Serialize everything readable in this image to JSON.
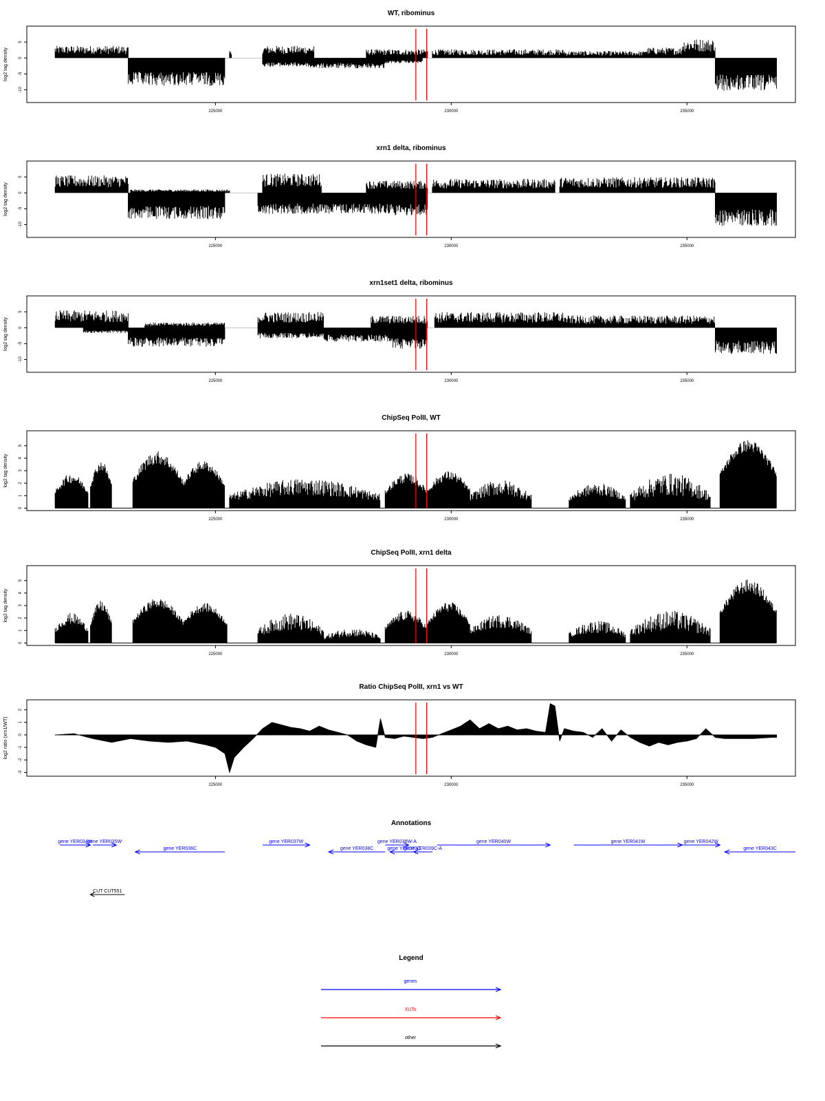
{
  "chart_data": [
    {
      "type": "area",
      "title": "WT, ribominus",
      "xlabel": "",
      "ylabel": "log2 tag density",
      "x_ticks": [
        225000,
        230000,
        235000
      ],
      "y_ticks": [
        5,
        0,
        -5,
        -10
      ],
      "xlim": [
        221000,
        237300
      ],
      "ylim": [
        -14,
        10
      ],
      "markers_x": [
        229250,
        229480
      ],
      "plus_strand_regions": [
        {
          "start": 221600,
          "end": 223150,
          "height": 3.5
        },
        {
          "start": 225300,
          "end": 225350,
          "height": 2
        },
        {
          "start": 226000,
          "end": 227100,
          "height": 3.5
        },
        {
          "start": 228200,
          "end": 229500,
          "height": 2.5
        },
        {
          "start": 229600,
          "end": 232400,
          "height": 2.5
        },
        {
          "start": 232400,
          "end": 234100,
          "height": 2.0
        },
        {
          "start": 234100,
          "end": 234900,
          "height": 3.0
        },
        {
          "start": 234900,
          "end": 235600,
          "height": 5.5
        }
      ],
      "minus_strand_regions": [
        {
          "start": 223150,
          "end": 225200,
          "depth": -8.0
        },
        {
          "start": 226000,
          "end": 227000,
          "depth": -2.5
        },
        {
          "start": 227000,
          "end": 228600,
          "depth": -3.0
        },
        {
          "start": 228600,
          "end": 229400,
          "depth": -1.5
        },
        {
          "start": 235600,
          "end": 236900,
          "depth": -9.5
        }
      ]
    },
    {
      "type": "area",
      "title": "xrn1 delta, ribominus",
      "xlabel": "",
      "ylabel": "log2 tag density",
      "x_ticks": [
        225000,
        230000,
        235000
      ],
      "y_ticks": [
        5,
        0,
        -5,
        -10
      ],
      "xlim": [
        221000,
        237300
      ],
      "ylim": [
        -14,
        10
      ],
      "markers_x": [
        229250,
        229480
      ],
      "plus_strand_regions": [
        {
          "start": 221600,
          "end": 223150,
          "height": 5.0
        },
        {
          "start": 223200,
          "end": 225300,
          "height": 1.0
        },
        {
          "start": 226000,
          "end": 227250,
          "height": 5.5
        },
        {
          "start": 228200,
          "end": 229500,
          "height": 3.5
        },
        {
          "start": 229600,
          "end": 232200,
          "height": 4.0
        },
        {
          "start": 232300,
          "end": 235600,
          "height": 4.5
        }
      ],
      "minus_strand_regions": [
        {
          "start": 223150,
          "end": 225200,
          "depth": -7.5
        },
        {
          "start": 225900,
          "end": 228800,
          "depth": -6.0
        },
        {
          "start": 228800,
          "end": 229500,
          "depth": -6.5
        },
        {
          "start": 235600,
          "end": 236900,
          "depth": -9.5
        }
      ]
    },
    {
      "type": "area",
      "title": "xrn1set1 delta, ribominus",
      "xlabel": "",
      "ylabel": "log2 tag density",
      "x_ticks": [
        225000,
        230000,
        235000
      ],
      "y_ticks": [
        5,
        0,
        -5,
        -10
      ],
      "xlim": [
        221000,
        237300
      ],
      "ylim": [
        -14,
        10
      ],
      "markers_x": [
        229250,
        229480
      ],
      "plus_strand_regions": [
        {
          "start": 221600,
          "end": 223150,
          "height": 5.0
        },
        {
          "start": 223500,
          "end": 225200,
          "height": 1.5
        },
        {
          "start": 225900,
          "end": 227300,
          "height": 4.5
        },
        {
          "start": 228300,
          "end": 229500,
          "height": 3.5
        },
        {
          "start": 229650,
          "end": 232400,
          "height": 4.5
        },
        {
          "start": 232400,
          "end": 235600,
          "height": 3.5
        }
      ],
      "minus_strand_regions": [
        {
          "start": 222200,
          "end": 223150,
          "depth": -1.5
        },
        {
          "start": 223150,
          "end": 225200,
          "depth": -5.5
        },
        {
          "start": 225900,
          "end": 227300,
          "depth": -3.0
        },
        {
          "start": 227300,
          "end": 228700,
          "depth": -4.0
        },
        {
          "start": 228700,
          "end": 229500,
          "depth": -6.0
        },
        {
          "start": 235600,
          "end": 236900,
          "depth": -7.5
        }
      ]
    },
    {
      "type": "bar",
      "title": "ChipSeq PolII, WT",
      "xlabel": "",
      "ylabel": "log2 tag density",
      "x_ticks": [
        225000,
        230000,
        235000
      ],
      "y_ticks": [
        0,
        1,
        2,
        3,
        4,
        5
      ],
      "xlim": [
        221000,
        237300
      ],
      "ylim": [
        -0.2,
        6.2
      ],
      "markers_x": [
        229250,
        229480
      ],
      "regions": [
        {
          "start": 221600,
          "end": 222300,
          "level": 2.0,
          "peak": 2.8
        },
        {
          "start": 222350,
          "end": 222800,
          "level": 3.0,
          "peak": 3.8
        },
        {
          "start": 223250,
          "end": 224300,
          "level": 3.5,
          "peak": 4.6
        },
        {
          "start": 224300,
          "end": 225200,
          "level": 3.0,
          "peak": 3.8
        },
        {
          "start": 225300,
          "end": 228500,
          "level": 1.0,
          "peak": 2.4
        },
        {
          "start": 228600,
          "end": 229500,
          "level": 2.0,
          "peak": 2.8
        },
        {
          "start": 229500,
          "end": 230400,
          "level": 2.2,
          "peak": 3.0
        },
        {
          "start": 230400,
          "end": 231700,
          "level": 1.0,
          "peak": 2.3
        },
        {
          "start": 232500,
          "end": 233700,
          "level": 1.0,
          "peak": 2.0
        },
        {
          "start": 233800,
          "end": 235500,
          "level": 1.0,
          "peak": 2.8
        },
        {
          "start": 235700,
          "end": 236900,
          "level": 4.5,
          "peak": 5.5
        }
      ]
    },
    {
      "type": "bar",
      "title": "ChipSeq PolII, xrn1 delta",
      "xlabel": "",
      "ylabel": "log2 tag density",
      "x_ticks": [
        225000,
        230000,
        235000
      ],
      "y_ticks": [
        0,
        1,
        2,
        3,
        4,
        5
      ],
      "xlim": [
        221000,
        237300
      ],
      "ylim": [
        -0.2,
        6.2
      ],
      "markers_x": [
        229250,
        229480
      ],
      "regions": [
        {
          "start": 221600,
          "end": 222300,
          "level": 1.5,
          "peak": 2.4
        },
        {
          "start": 222350,
          "end": 222800,
          "level": 2.5,
          "peak": 3.4
        },
        {
          "start": 223250,
          "end": 224300,
          "level": 2.8,
          "peak": 3.6
        },
        {
          "start": 224300,
          "end": 225250,
          "level": 2.5,
          "peak": 3.2
        },
        {
          "start": 225900,
          "end": 227300,
          "level": 1.0,
          "peak": 2.4
        },
        {
          "start": 227300,
          "end": 228500,
          "level": 0.5,
          "peak": 1.2
        },
        {
          "start": 228600,
          "end": 229500,
          "level": 1.8,
          "peak": 2.6
        },
        {
          "start": 229500,
          "end": 230400,
          "level": 2.5,
          "peak": 3.3
        },
        {
          "start": 230400,
          "end": 231700,
          "level": 1.2,
          "peak": 2.3
        },
        {
          "start": 232500,
          "end": 233700,
          "level": 0.8,
          "peak": 1.8
        },
        {
          "start": 233800,
          "end": 235500,
          "level": 1.0,
          "peak": 2.6
        },
        {
          "start": 235700,
          "end": 236900,
          "level": 4.0,
          "peak": 5.1
        }
      ]
    },
    {
      "type": "area",
      "title": "Ratio ChipSeq PolII, xrn1 vs WT",
      "xlabel": "",
      "ylabel": "log2 ratio (xrn1/WT)",
      "x_ticks": [
        225000,
        230000,
        235000
      ],
      "y_ticks": [
        2,
        1,
        0,
        -1,
        -2,
        -3
      ],
      "xlim": [
        221000,
        237300
      ],
      "ylim": [
        -3.3,
        2.8
      ],
      "markers_x": [
        229250,
        229480
      ],
      "x": [
        221600,
        222000,
        222400,
        222800,
        223200,
        223600,
        224000,
        224400,
        224800,
        225000,
        225200,
        225300,
        225400,
        225600,
        225800,
        226000,
        226200,
        226400,
        226600,
        226800,
        227000,
        227200,
        227400,
        227600,
        227800,
        228000,
        228200,
        228400,
        228500,
        228600,
        228800,
        229000,
        229200,
        229400,
        229600,
        229800,
        230000,
        230200,
        230400,
        230600,
        230800,
        231000,
        231200,
        231400,
        231600,
        231800,
        232000,
        232100,
        232200,
        232300,
        232400,
        232600,
        232800,
        233000,
        233200,
        233400,
        233600,
        233800,
        234000,
        234200,
        234400,
        234600,
        234800,
        235000,
        235200,
        235400,
        235600,
        235800,
        236000,
        236400,
        236800,
        236900
      ],
      "values": [
        0.0,
        0.1,
        -0.3,
        -0.6,
        -0.3,
        -0.5,
        -0.6,
        -0.5,
        -0.8,
        -1.0,
        -1.5,
        -3.0,
        -1.8,
        -1.0,
        -0.3,
        0.5,
        1.0,
        0.8,
        0.6,
        0.5,
        0.3,
        0.7,
        0.4,
        0.2,
        0.0,
        -0.5,
        -0.8,
        -1.0,
        1.3,
        -0.2,
        -0.3,
        -0.1,
        -0.2,
        -0.3,
        -0.2,
        0.1,
        0.4,
        0.7,
        1.2,
        0.5,
        0.9,
        0.5,
        0.7,
        0.4,
        0.5,
        0.3,
        0.2,
        2.5,
        2.3,
        -0.5,
        0.5,
        0.3,
        0.2,
        -0.2,
        0.5,
        -0.5,
        0.4,
        -0.2,
        -0.6,
        -0.9,
        -0.6,
        -0.8,
        -0.6,
        -0.5,
        -0.3,
        0.5,
        -0.2,
        -0.3,
        -0.3,
        -0.3,
        -0.2,
        -0.2
      ]
    }
  ],
  "annotations": {
    "title": "Annotations",
    "genes": [
      {
        "label": "gene YER034W",
        "start": 221700,
        "end": 222350,
        "strand": "+"
      },
      {
        "label": "gene YER035W",
        "start": 222400,
        "end": 222900,
        "strand": "+"
      },
      {
        "label": "gene YER036C",
        "start": 223300,
        "end": 225200,
        "strand": "-"
      },
      {
        "label": "gene YER037W",
        "start": 226000,
        "end": 227000,
        "strand": "+"
      },
      {
        "label": "gene YER038C",
        "start": 227400,
        "end": 228600,
        "strand": "-"
      },
      {
        "label": "gene YER038W-A",
        "start": 228600,
        "end": 229100,
        "strand": "+"
      },
      {
        "label": "gene YER039C",
        "start": 228700,
        "end": 229300,
        "strand": "-"
      },
      {
        "label": "gene YER039C-A",
        "start": 229200,
        "end": 229600,
        "strand": "-"
      },
      {
        "label": "gene YER040W",
        "start": 229700,
        "end": 232100,
        "strand": "+"
      },
      {
        "label": "gene YER041W",
        "start": 232600,
        "end": 234900,
        "strand": "+"
      },
      {
        "label": "gene YER042W",
        "start": 234900,
        "end": 235700,
        "strand": "+"
      },
      {
        "label": "gene YER043C",
        "start": 235800,
        "end": 237300,
        "strand": "-"
      }
    ],
    "other": [
      {
        "label": "CUT CUT551",
        "start": 222200,
        "end": 223000,
        "strand": "-"
      }
    ]
  },
  "legend": {
    "title": "Legend",
    "items": [
      {
        "label": "genes",
        "color": "#0000ff"
      },
      {
        "label": "XUTs",
        "color": "#ff0000"
      },
      {
        "label": "other",
        "color": "#000000"
      }
    ]
  },
  "colors": {
    "marker": "#ff0000",
    "gene": "#0000ff",
    "xut": "#ff0000",
    "other": "#000000",
    "trace": "#000000"
  }
}
